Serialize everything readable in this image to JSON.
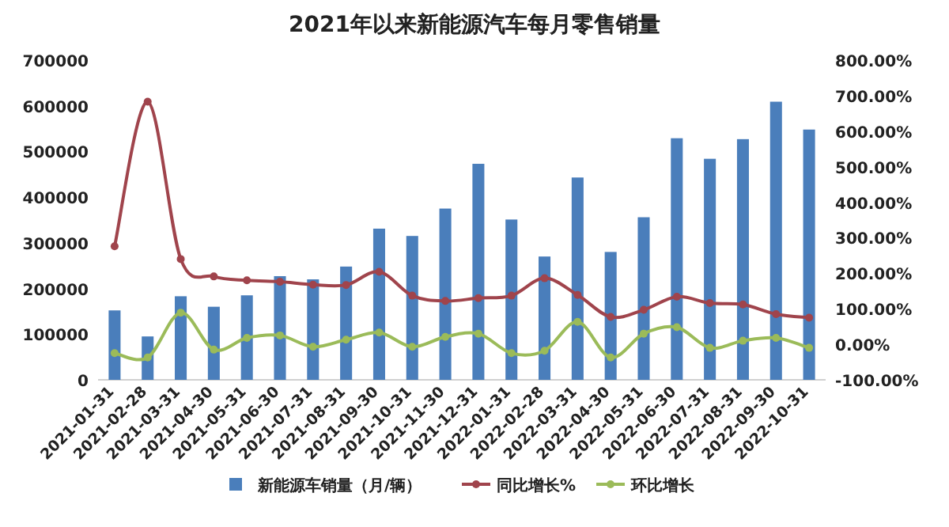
{
  "chart_data": {
    "type": "bar",
    "title": "2021年以来新能源汽车每月零售销量",
    "categories": [
      "2021-01-31",
      "2021-02-28",
      "2021-03-31",
      "2021-04-30",
      "2021-05-31",
      "2021-06-30",
      "2021-07-31",
      "2021-08-31",
      "2021-09-30",
      "2021-10-31",
      "2021-11-30",
      "2021-12-31",
      "2022-01-31",
      "2022-02-28",
      "2022-03-31",
      "2022-04-30",
      "2022-05-31",
      "2022-06-30",
      "2022-07-31",
      "2022-08-31",
      "2022-09-30",
      "2022-10-31"
    ],
    "series": [
      {
        "name": "新能源车销量（月/辆）",
        "color": "#4a7ebb",
        "values": [
          152000,
          95000,
          183000,
          160000,
          185000,
          227000,
          220000,
          248000,
          331000,
          315000,
          375000,
          473000,
          351000,
          270000,
          443000,
          280000,
          356000,
          529000,
          484000,
          527000,
          609000,
          548000
        ]
      },
      {
        "name": "同比增长%",
        "type": "line",
        "axis": "y2",
        "color": "#a0444c",
        "values": [
          276,
          683,
          240,
          191,
          180,
          176,
          168,
          167,
          204,
          137,
          122,
          130,
          137,
          186,
          139,
          77,
          97,
          134,
          116,
          112,
          85,
          75
        ]
      },
      {
        "name": "环比增长",
        "type": "line",
        "axis": "y2",
        "color": "#9bbb59",
        "values": [
          -25,
          -37,
          89,
          -15,
          18,
          25,
          -7,
          13,
          33,
          -7,
          21,
          30,
          -25,
          -18,
          63,
          -37,
          30,
          48,
          -10,
          10,
          18,
          -10
        ]
      }
    ],
    "ylim": [
      0,
      700000
    ],
    "yticks": [
      0,
      100000,
      200000,
      300000,
      400000,
      500000,
      600000,
      700000
    ],
    "y2lim": [
      -100,
      800
    ],
    "y2ticks": [
      {
        "value": -100,
        "label": "-100.00%"
      },
      {
        "value": 0,
        "label": "0.00%"
      },
      {
        "value": 100,
        "label": "100.00%"
      },
      {
        "value": 200,
        "label": "200.00%"
      },
      {
        "value": 300,
        "label": "300.00%"
      },
      {
        "value": 400,
        "label": "400.00%"
      },
      {
        "value": 500,
        "label": "500.00%"
      },
      {
        "value": 600,
        "label": "600.00%"
      },
      {
        "value": 700,
        "label": "700.00%"
      },
      {
        "value": 800,
        "label": "800.00%"
      }
    ],
    "legend": "bottom",
    "marker": "circle",
    "line_style": "solid"
  }
}
